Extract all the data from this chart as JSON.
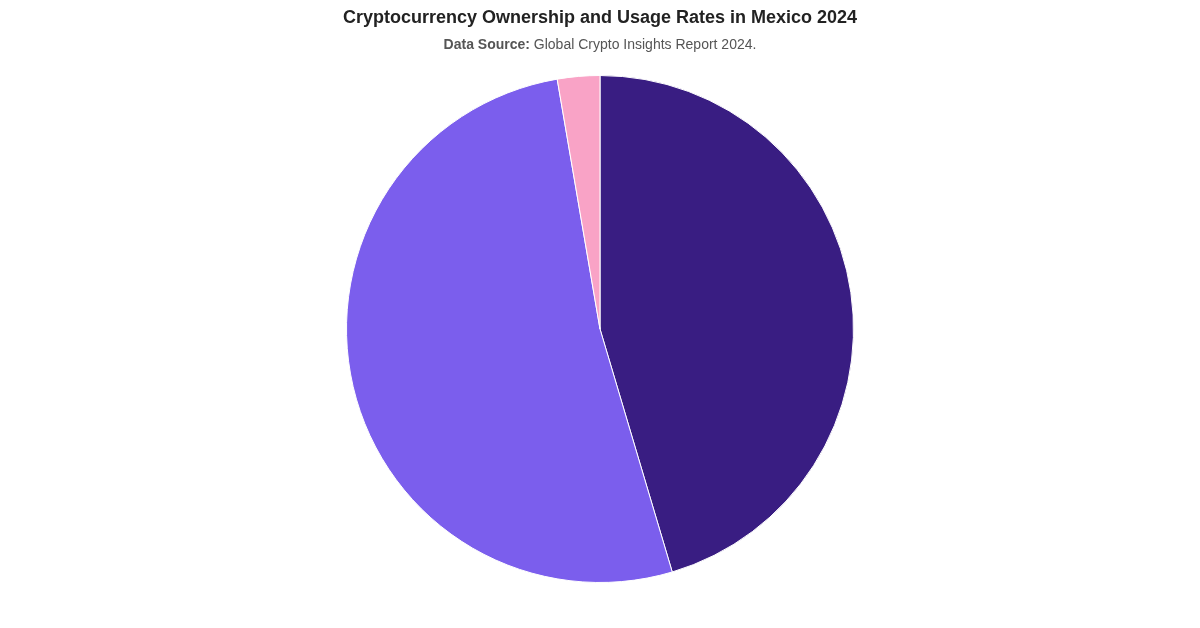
{
  "chart_data": {
    "type": "pie",
    "title": "Cryptocurrency Ownership and Usage Rates in Mexico 2024",
    "subtitle": "Data Source: Global Crypto Insights Report 2024.",
    "categories": [
      null,
      null,
      null
    ],
    "values": [
      45.4,
      51.9,
      2.7
    ],
    "colors": [
      "#391d82",
      "#7b5eed",
      "#f9a3c6"
    ],
    "legend": false
  }
}
